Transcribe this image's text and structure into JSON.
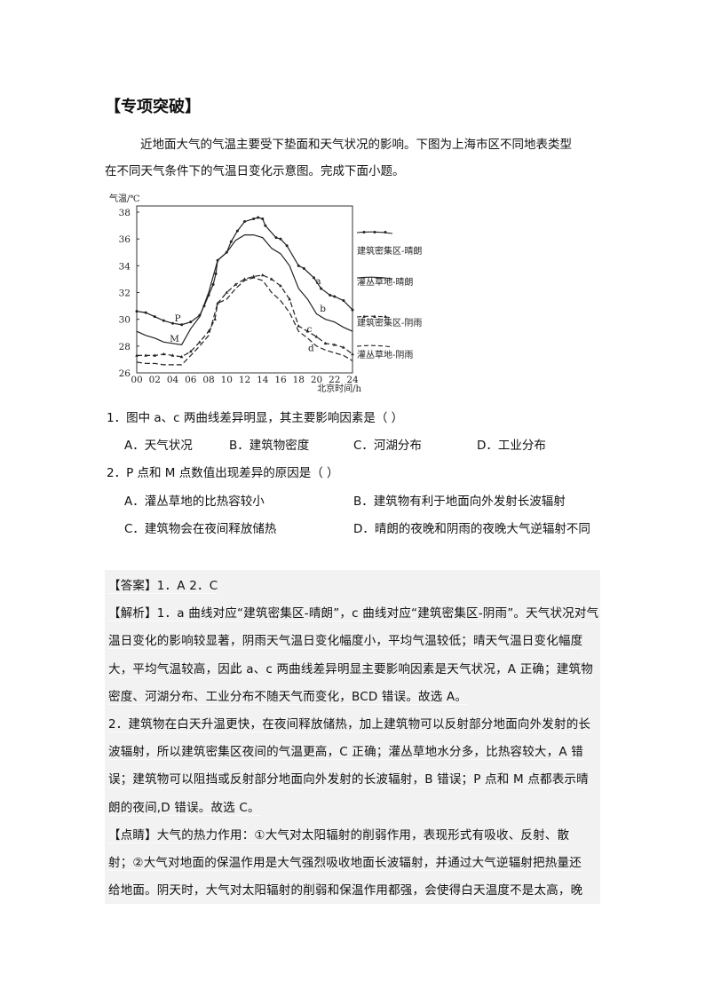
{
  "title": "【专项突破】",
  "intro": [
    "近地面大气的气温主要受下垫面和天气状况的影响。下图为上海市区不同地表类型",
    "在不同天气条件下的气温日变化示意图。完成下面小题。"
  ],
  "questions": [
    {
      "stem": "1．图中 a、c 两曲线差异明显，其主要影响因素是（   ）",
      "options": [
        "A．天气状况",
        "B．建筑物密度",
        "C．河湖分布",
        "D．工业分布"
      ]
    },
    {
      "stem": "2．P 点和 M 点数值出现差异的原因是（   ）",
      "options": [
        "A．灌丛草地的比热容较小",
        "B．建筑物有利于地面向外发射长波辐射",
        "C．建筑物会在夜间释放储热",
        "D．晴朗的夜晚和阴雨的夜晚大气逆辐射不同"
      ]
    }
  ],
  "answer_lines": [
    "【答案】1．A      2．C",
    "【解析】1．a 曲线对应“建筑密集区-晴朗”，c 曲线对应“建筑密集区-阴雨”。天气状况对气",
    "温日变化的影响较显著，阴雨天气温日变化幅度小，平均气温较低；晴天气温日变化幅度",
    "大，平均气温较高，因此 a、c 两曲线差异明显主要影响因素是天气状况，A 正确；建筑物",
    "密度、河湖分布、工业分布不随天气而变化，BCD 错误。故选 A。",
    "2．建筑物在白天升温更快，在夜间释放储热，加上建筑物可以反射部分地面向外发射的长",
    "波辐射，所以建筑密集区夜间的气温更高，C 正确；灌丛草地水分多，比热容较大，A 错",
    "误；建筑物可以阻挡或反射部分地面向外发射的长波辐射，B 错误；P 点和 M 点都表示晴",
    "朗的夜间,D 错误。故选 C。",
    "【点睛】大气的热力作用：①大气对太阳辐射的削弱作用，表现形式有吸收、反射、散",
    "射；②大气对地面的保温作用是大气强烈吸收地面长波辐射，并通过大气逆辐射把热量还",
    "给地面。阴天时，大气对太阳辐射的削弱和保温作用都强，会使得白天温度不是太高，晚"
  ],
  "chart_data": {
    "type": "line",
    "ylabel": "气温/℃",
    "xlabel": "北京时间/h",
    "xlim": [
      0,
      24
    ],
    "ylim": [
      26,
      38
    ],
    "xticks": [
      "00",
      "02",
      "04",
      "06",
      "08",
      "10",
      "12",
      "14",
      "16",
      "18",
      "20",
      "22",
      "24"
    ],
    "yticks": [
      "26",
      "28",
      "30",
      "32",
      "34",
      "36",
      "38"
    ],
    "grid": false,
    "legend_position": "right",
    "series": [
      {
        "name": "建筑密集区-晴朗",
        "label": "a",
        "style": "solid-dots",
        "x": [
          0,
          1,
          2,
          3,
          4,
          5,
          6,
          7,
          7.5,
          8,
          8.5,
          8.8,
          9,
          10,
          10.5,
          11.2,
          12,
          13,
          13.5,
          14,
          14.3,
          15.5,
          16,
          16.7,
          18,
          18.6,
          19.7,
          20.5,
          21.5,
          22,
          23,
          24
        ],
        "y": [
          30.6,
          30.5,
          30.2,
          29.9,
          29.7,
          29.6,
          29.8,
          30.3,
          31,
          31.8,
          32.6,
          33.4,
          34.4,
          35,
          35.8,
          36.6,
          37.3,
          37.5,
          37.6,
          37.5,
          37,
          36.1,
          36,
          35.5,
          34,
          33.8,
          33.1,
          32.3,
          31.8,
          31.7,
          31.4,
          30.7
        ]
      },
      {
        "name": "灌丛草地-晴朗",
        "label": "b",
        "style": "solid",
        "x": [
          0,
          1,
          2,
          3,
          4,
          5,
          6,
          7,
          8,
          9,
          10,
          11,
          12,
          13,
          14,
          15,
          16,
          17,
          18,
          19,
          20,
          21,
          22,
          23,
          24
        ],
        "y": [
          29.1,
          28.8,
          28.6,
          28.3,
          28.2,
          28.1,
          29.3,
          30.2,
          32,
          34.4,
          35,
          35.9,
          36.3,
          36.3,
          36.1,
          35.3,
          34.9,
          34,
          32.3,
          31.5,
          30.4,
          30,
          29.8,
          29.4,
          29.1
        ]
      },
      {
        "name": "建筑密集区-阴雨",
        "label": "c",
        "style": "dashed-triangles",
        "x": [
          0,
          1,
          2,
          3,
          4,
          5,
          6,
          7,
          8,
          8.7,
          9,
          10,
          11,
          12,
          13,
          14,
          15,
          16,
          17,
          18,
          19,
          20,
          21,
          22,
          23,
          24
        ],
        "y": [
          27.3,
          27.3,
          27.3,
          27.4,
          27.3,
          27.2,
          27.6,
          28.3,
          29.1,
          30,
          31.2,
          32,
          32.6,
          33,
          33.2,
          33.3,
          33,
          32.5,
          31.5,
          29.5,
          29.1,
          28.7,
          28.2,
          28.1,
          27.9,
          27.4
        ]
      },
      {
        "name": "灌丛草地-阴雨",
        "label": "d",
        "style": "dashed",
        "x": [
          0,
          1,
          2,
          3,
          4,
          5,
          6,
          7,
          8,
          9,
          10,
          11,
          12,
          13,
          14,
          15,
          16,
          17,
          18,
          19,
          20,
          21,
          22,
          23,
          24
        ],
        "y": [
          26.8,
          26.7,
          26.7,
          26.6,
          26.6,
          26.6,
          27.3,
          28,
          28.8,
          31.2,
          31.5,
          32.3,
          32.9,
          33.1,
          32.9,
          32,
          31.4,
          30.5,
          29.1,
          28.6,
          28,
          27.7,
          27.5,
          27.3,
          26.9
        ]
      }
    ],
    "annotations": [
      {
        "text": "P",
        "x": 4.55,
        "y": 30.1
      },
      {
        "text": "M",
        "x": 4.2,
        "y": 28.6
      },
      {
        "text": "a",
        "x": 20.2,
        "y": 32.9
      },
      {
        "text": "b",
        "x": 20.7,
        "y": 30.85
      },
      {
        "text": "c",
        "x": 19.2,
        "y": 29.3
      },
      {
        "text": "d",
        "x": 19.4,
        "y": 27.9
      }
    ]
  }
}
